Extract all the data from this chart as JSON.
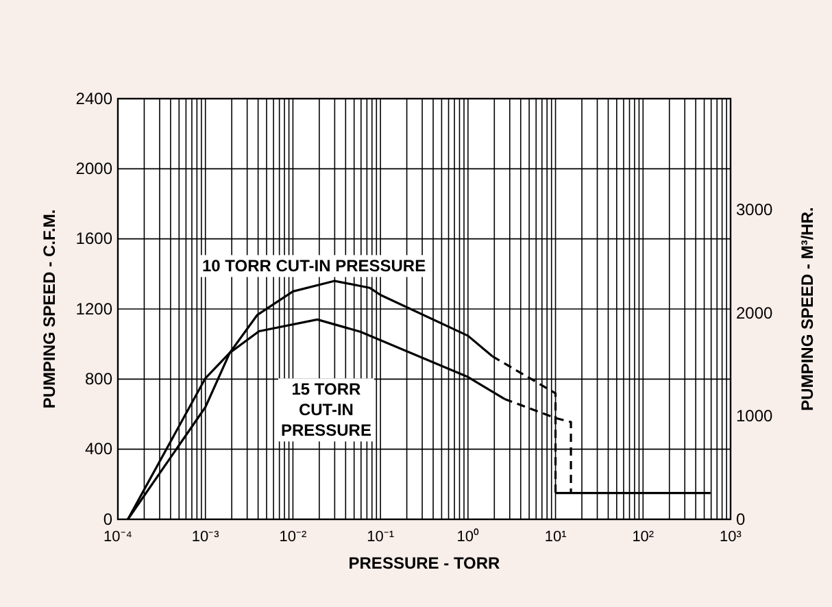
{
  "chart_data": {
    "type": "line",
    "xlabel": "PRESSURE - TORR",
    "ylabel": "PUMPING SPEED - C.F.M.",
    "y2label": "PUMPING SPEED - M³/HR.",
    "log": "x",
    "grid": true,
    "line_style": "solid",
    "xlim": [
      0.0001,
      1000
    ],
    "ylim": [
      0,
      2400
    ],
    "y2lim": [
      0,
      4078
    ],
    "yticks": [
      0,
      400,
      800,
      1200,
      1600,
      2000,
      2400
    ],
    "y2ticks": [
      0,
      1000,
      2000,
      3000
    ],
    "xticks": [
      {
        "value": 0.0001,
        "label": "10⁻⁴"
      },
      {
        "value": 0.0002,
        "label": null
      },
      {
        "value": 0.0003,
        "label": null
      },
      {
        "value": 0.0004,
        "label": null
      },
      {
        "value": 0.0005,
        "label": null
      },
      {
        "value": 0.0006,
        "label": null
      },
      {
        "value": 0.0007,
        "label": null
      },
      {
        "value": 0.0008,
        "label": null
      },
      {
        "value": 0.0009,
        "label": null
      },
      {
        "value": 0.001,
        "label": "10⁻³"
      },
      {
        "value": 0.002,
        "label": null
      },
      {
        "value": 0.003,
        "label": null
      },
      {
        "value": 0.004,
        "label": null
      },
      {
        "value": 0.005,
        "label": null
      },
      {
        "value": 0.006,
        "label": null
      },
      {
        "value": 0.007,
        "label": null
      },
      {
        "value": 0.008,
        "label": null
      },
      {
        "value": 0.009,
        "label": null
      },
      {
        "value": 0.01,
        "label": "10⁻²"
      },
      {
        "value": 0.02,
        "label": null
      },
      {
        "value": 0.03,
        "label": null
      },
      {
        "value": 0.04,
        "label": null
      },
      {
        "value": 0.05,
        "label": null
      },
      {
        "value": 0.06,
        "label": null
      },
      {
        "value": 0.07,
        "label": null
      },
      {
        "value": 0.08,
        "label": null
      },
      {
        "value": 0.09,
        "label": null
      },
      {
        "value": 0.1,
        "label": "10⁻¹"
      },
      {
        "value": 0.2,
        "label": null
      },
      {
        "value": 0.3,
        "label": null
      },
      {
        "value": 0.4,
        "label": null
      },
      {
        "value": 0.5,
        "label": null
      },
      {
        "value": 0.6,
        "label": null
      },
      {
        "value": 0.7,
        "label": null
      },
      {
        "value": 0.8,
        "label": null
      },
      {
        "value": 0.9,
        "label": null
      },
      {
        "value": 1,
        "label": "10⁰"
      },
      {
        "value": 2,
        "label": null
      },
      {
        "value": 3,
        "label": null
      },
      {
        "value": 4,
        "label": null
      },
      {
        "value": 5,
        "label": null
      },
      {
        "value": 6,
        "label": null
      },
      {
        "value": 7,
        "label": null
      },
      {
        "value": 8,
        "label": null
      },
      {
        "value": 9,
        "label": null
      },
      {
        "value": 10,
        "label": "10¹"
      },
      {
        "value": 20,
        "label": null
      },
      {
        "value": 30,
        "label": null
      },
      {
        "value": 40,
        "label": null
      },
      {
        "value": 50,
        "label": null
      },
      {
        "value": 60,
        "label": null
      },
      {
        "value": 70,
        "label": null
      },
      {
        "value": 80,
        "label": null
      },
      {
        "value": 90,
        "label": null
      },
      {
        "value": 100,
        "label": "10²"
      },
      {
        "value": 200,
        "label": null
      },
      {
        "value": 300,
        "label": null
      },
      {
        "value": 400,
        "label": null
      },
      {
        "value": 500,
        "label": null
      },
      {
        "value": 600,
        "label": null
      },
      {
        "value": 700,
        "label": null
      },
      {
        "value": 800,
        "label": null
      },
      {
        "value": 900,
        "label": null
      },
      {
        "value": 1000,
        "label": "10³"
      }
    ],
    "series": [
      {
        "color": "#000000",
        "x": [
          0.00013,
          0.001,
          0.0019,
          0.0039,
          0.01,
          0.03,
          0.076,
          0.1,
          1,
          1.9
        ],
        "values": [
          0,
          640,
          950,
          1165,
          1300,
          1360,
          1320,
          1280,
          1047,
          930
        ]
      },
      {
        "color": "#000000",
        "line_style": "dashed",
        "x": [
          1.9,
          10,
          10
        ],
        "values": [
          930,
          719,
          150
        ]
      },
      {
        "color": "#000000",
        "x": [
          0.00013,
          0.001,
          0.0019,
          0.0041,
          0.019,
          0.059,
          1,
          2.6
        ],
        "values": [
          0,
          805,
          950,
          1073,
          1140,
          1070,
          812,
          687
        ]
      },
      {
        "color": "#000000",
        "line_style": "dashed",
        "x": [
          2.6,
          10,
          15,
          15
        ],
        "values": [
          687,
          578,
          555,
          150
        ]
      },
      {
        "color": "#000000",
        "x": [
          10,
          590
        ],
        "values": [
          150,
          150
        ]
      }
    ],
    "annotations": [
      "10 TORR CUT-IN PRESSURE",
      "15 TORR\nCUT-IN\nPRESSURE"
    ]
  }
}
